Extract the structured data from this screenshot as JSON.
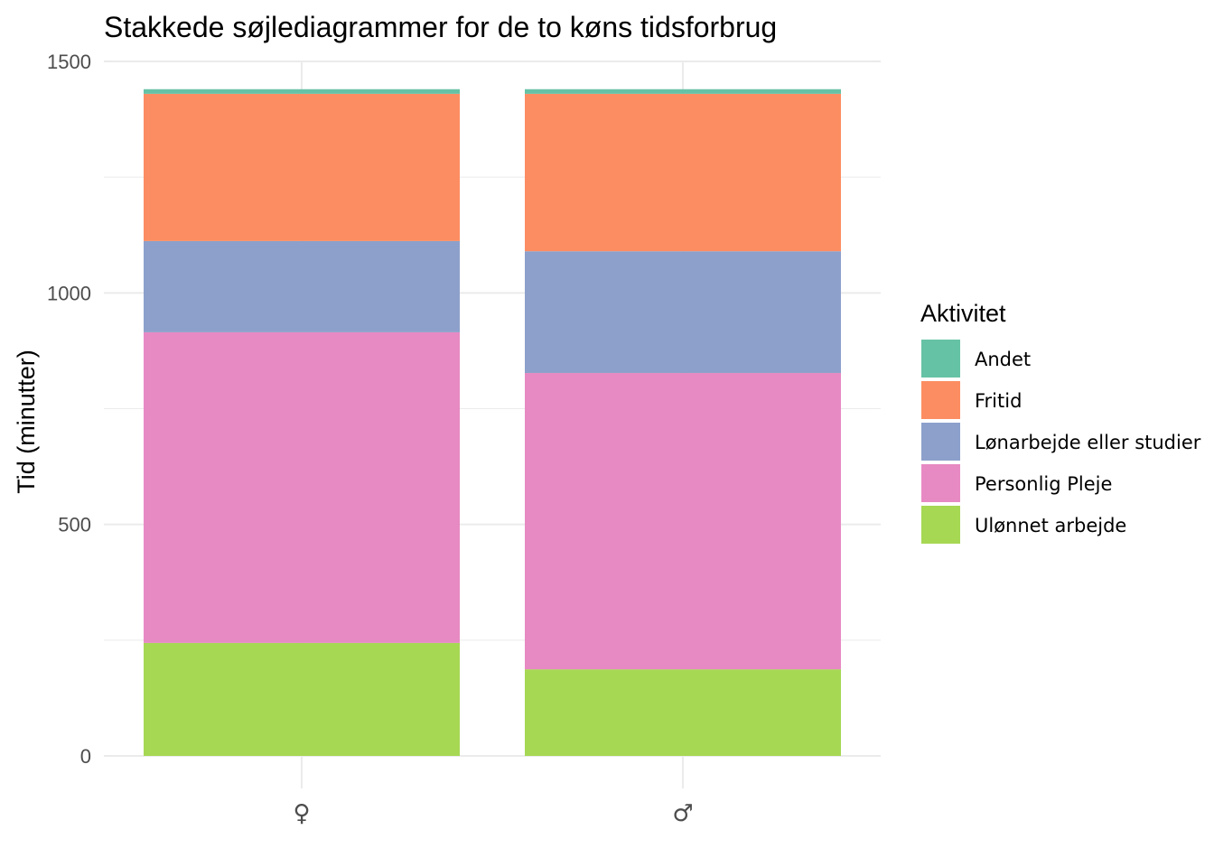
{
  "chart_data": {
    "type": "bar",
    "stacked": true,
    "title": "Stakkede søjlediagrammer for de to køns tidsforbrug",
    "xlabel": "",
    "ylabel": "Tid (minutter)",
    "ylim": [
      0,
      1500
    ],
    "y_ticks": [
      0,
      500,
      1000,
      1500
    ],
    "y_minor_ticks": [
      250,
      750,
      1250
    ],
    "grid": true,
    "categories": [
      "♀",
      "♂"
    ],
    "legend": {
      "title": "Aktivitet",
      "position": "right"
    },
    "series": [
      {
        "name": "Ulønnet arbejde",
        "color": "#a6d854",
        "values": [
          244,
          187
        ]
      },
      {
        "name": "Personlig Pleje",
        "color": "#e78ac3",
        "values": [
          671,
          640
        ]
      },
      {
        "name": "Lønarbejde eller studier",
        "color": "#8da0cb",
        "values": [
          197,
          263
        ]
      },
      {
        "name": "Fritid",
        "color": "#fc8d62",
        "values": [
          318,
          340
        ]
      },
      {
        "name": "Andet",
        "color": "#66c2a5",
        "values": [
          10,
          10
        ]
      }
    ],
    "legend_order": [
      "Andet",
      "Fritid",
      "Lønarbejde eller studier",
      "Personlig Pleje",
      "Ulønnet arbejde"
    ]
  }
}
